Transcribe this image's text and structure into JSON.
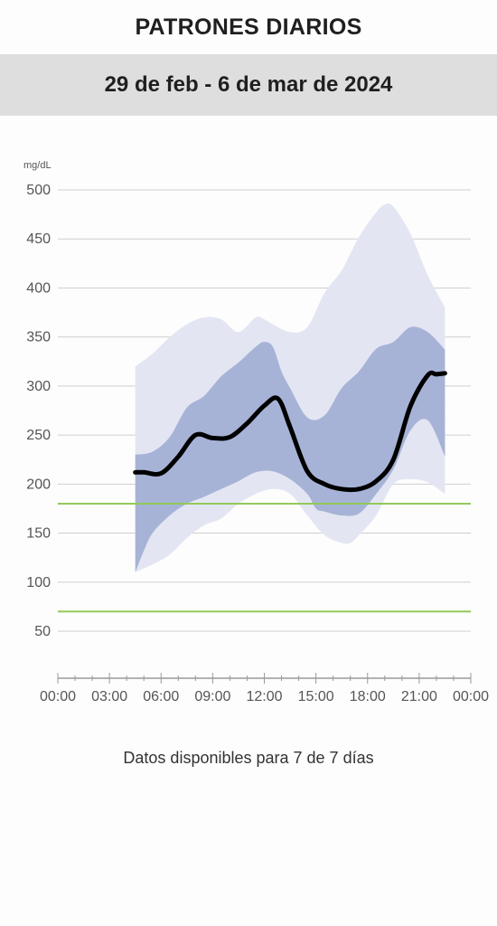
{
  "header": {
    "title": "PATRONES DIARIOS",
    "date_range": "29 de feb - 6 de mar de 2024"
  },
  "footer": {
    "text": "Datos disponibles para 7 de 7 días"
  },
  "colors": {
    "median": "#000000",
    "inner_band": "#a7b3d6",
    "outer_band": "#e3e6f2",
    "target_line": "#93c95a",
    "grid": "#cfcfcf"
  },
  "chart_data": {
    "type": "area",
    "unit_label": "mg/dL",
    "xlabel": "",
    "ylabel": "",
    "xlim": [
      0,
      24
    ],
    "ylim": [
      0,
      500
    ],
    "x_ticks": [
      0,
      3,
      6,
      9,
      12,
      15,
      18,
      21,
      24
    ],
    "x_tick_labels": [
      "00:00",
      "03:00",
      "06:00",
      "09:00",
      "12:00",
      "15:00",
      "18:00",
      "21:00",
      "00:00"
    ],
    "y_ticks": [
      50,
      100,
      150,
      200,
      250,
      300,
      350,
      400,
      450,
      500
    ],
    "target_range": [
      70,
      180
    ],
    "grid": true,
    "series": [
      {
        "role": "percentile_90",
        "x": [
          4.5,
          5.5,
          6.5,
          7.5,
          8.5,
          9.5,
          10.5,
          11.5,
          12.0,
          12.5,
          13.5,
          14.5,
          15.5,
          16.5,
          17.5,
          18.5,
          19.0,
          19.5,
          20.5,
          21.5,
          22.5
        ],
        "values": [
          320,
          333,
          350,
          363,
          370,
          368,
          355,
          370,
          368,
          363,
          355,
          360,
          395,
          418,
          452,
          477,
          485,
          483,
          455,
          413,
          380
        ]
      },
      {
        "role": "percentile_75",
        "x": [
          4.5,
          5.5,
          6.5,
          7.5,
          8.5,
          9.5,
          10.5,
          11.5,
          12.0,
          12.5,
          13.0,
          13.5,
          14.5,
          15.5,
          16.5,
          17.5,
          18.5,
          19.5,
          20.5,
          21.5,
          22.5
        ],
        "values": [
          230,
          233,
          248,
          278,
          290,
          310,
          324,
          340,
          345,
          340,
          315,
          298,
          268,
          270,
          298,
          315,
          338,
          345,
          360,
          355,
          337
        ]
      },
      {
        "role": "median",
        "x": [
          4.5,
          5.0,
          6.0,
          7.0,
          8.0,
          9.0,
          10.0,
          11.0,
          12.0,
          12.8,
          13.5,
          14.5,
          15.5,
          16.5,
          17.5,
          18.5,
          19.5,
          20.5,
          21.5,
          22.0,
          22.5
        ],
        "values": [
          212,
          212,
          211,
          228,
          250,
          247,
          248,
          262,
          280,
          287,
          258,
          213,
          200,
          195,
          195,
          203,
          225,
          280,
          311,
          312,
          313
        ]
      },
      {
        "role": "percentile_25",
        "x": [
          4.5,
          5.0,
          5.5,
          6.5,
          7.5,
          8.5,
          9.5,
          10.5,
          11.5,
          12.5,
          13.5,
          14.5,
          15.0,
          15.5,
          16.5,
          17.5,
          18.5,
          19.5,
          20.5,
          21.5,
          22.5
        ],
        "values": [
          110,
          132,
          150,
          168,
          180,
          187,
          195,
          203,
          212,
          213,
          205,
          190,
          175,
          172,
          168,
          170,
          190,
          215,
          255,
          265,
          228
        ]
      },
      {
        "role": "percentile_10",
        "x": [
          4.5,
          5.5,
          6.5,
          7.5,
          8.5,
          9.5,
          10.5,
          11.5,
          12.5,
          13.5,
          14.5,
          15.5,
          16.5,
          17.0,
          17.5,
          18.5,
          19.5,
          20.5,
          21.5,
          22.5
        ],
        "values": [
          110,
          118,
          128,
          145,
          158,
          165,
          180,
          190,
          195,
          190,
          168,
          148,
          140,
          140,
          148,
          168,
          200,
          205,
          202,
          190
        ]
      }
    ]
  }
}
